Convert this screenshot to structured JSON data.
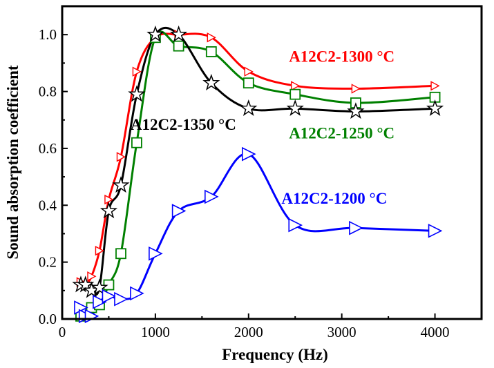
{
  "chart_data": {
    "type": "line",
    "title": "",
    "xlabel": "Frequency (Hz)",
    "ylabel": "Sound absorption coefficient",
    "xlim": [
      0,
      4500
    ],
    "ylim": [
      0,
      1.1
    ],
    "xticks": [
      0,
      1000,
      2000,
      3000,
      4000
    ],
    "yticks": [
      0.0,
      0.2,
      0.4,
      0.6,
      0.8,
      1.0
    ],
    "xtick_labels": [
      "0",
      "1000",
      "2000",
      "3000",
      "4000"
    ],
    "ytick_labels": [
      "0.0",
      "0.2",
      "0.4",
      "0.6",
      "0.8",
      "1.0"
    ],
    "grid": false,
    "series": [
      {
        "name": "A12C2-1300 °C",
        "color": "#ff0000",
        "marker": "triangle-right-small",
        "x": [
          200,
          250,
          315,
          400,
          500,
          630,
          800,
          1000,
          1250,
          1600,
          2000,
          2500,
          3150,
          4000
        ],
        "y": [
          0.13,
          0.12,
          0.15,
          0.24,
          0.42,
          0.57,
          0.87,
          0.99,
          1.0,
          0.99,
          0.87,
          0.82,
          0.81,
          0.82
        ]
      },
      {
        "name": "A12C2-1250 °C",
        "color": "#008000",
        "marker": "square",
        "x": [
          200,
          250,
          315,
          400,
          500,
          630,
          800,
          1000,
          1250,
          1600,
          2000,
          2500,
          3150,
          4000
        ],
        "y": [
          0.01,
          0.02,
          0.04,
          0.05,
          0.12,
          0.23,
          0.62,
          0.99,
          0.96,
          0.94,
          0.83,
          0.79,
          0.76,
          0.78
        ]
      },
      {
        "name": "A12C2-1350 °C",
        "color": "#000000",
        "marker": "star",
        "x": [
          200,
          250,
          315,
          400,
          500,
          630,
          800,
          1000,
          1250,
          1600,
          2000,
          2500,
          3150,
          4000
        ],
        "y": [
          0.12,
          0.12,
          0.1,
          0.11,
          0.38,
          0.47,
          0.79,
          1.0,
          1.0,
          0.83,
          0.74,
          0.74,
          0.73,
          0.74
        ]
      },
      {
        "name": "A12C2-1200 °C",
        "color": "#0000ff",
        "marker": "triangle-right",
        "x": [
          200,
          250,
          315,
          400,
          500,
          630,
          800,
          1000,
          1250,
          1600,
          2000,
          2500,
          3150,
          4000
        ],
        "y": [
          0.04,
          0.01,
          0.01,
          0.06,
          0.08,
          0.07,
          0.09,
          0.23,
          0.38,
          0.43,
          0.58,
          0.33,
          0.32,
          0.31
        ]
      }
    ],
    "annotations": [
      {
        "series": 0,
        "text": "A12C2-1300 °C",
        "color": "#ff0000",
        "at": [
          3000,
          0.905
        ]
      },
      {
        "series": 1,
        "text": "A12C2-1250 °C",
        "color": "#008000",
        "at": [
          3000,
          0.635
        ]
      },
      {
        "series": 2,
        "text": "A12C2-1350 °C",
        "color": "#000000",
        "at": [
          1300,
          0.665
        ]
      },
      {
        "series": 3,
        "text": "A12C2-1200 °C",
        "color": "#0000ff",
        "at": [
          2920,
          0.405
        ]
      }
    ]
  }
}
